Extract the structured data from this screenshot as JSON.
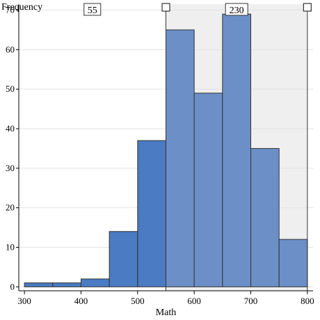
{
  "chart_data": {
    "type": "bar",
    "subtype": "histogram",
    "xlabel": "Math",
    "ylabel": "Frequency",
    "bin_width": 50,
    "bins": [
      {
        "start": 300,
        "end": 350,
        "count": 1
      },
      {
        "start": 350,
        "end": 400,
        "count": 1
      },
      {
        "start": 400,
        "end": 450,
        "count": 2
      },
      {
        "start": 450,
        "end": 500,
        "count": 14
      },
      {
        "start": 500,
        "end": 550,
        "count": 37
      },
      {
        "start": 550,
        "end": 600,
        "count": 65
      },
      {
        "start": 600,
        "end": 650,
        "count": 49
      },
      {
        "start": 650,
        "end": 700,
        "count": 69
      },
      {
        "start": 700,
        "end": 750,
        "count": 35
      },
      {
        "start": 750,
        "end": 800,
        "count": 12
      }
    ],
    "xlim": [
      290,
      810
    ],
    "ylim": [
      -1,
      71.5
    ],
    "x_ticks": [
      300,
      400,
      500,
      600,
      700,
      800
    ],
    "y_ticks": [
      0,
      10,
      20,
      30,
      40,
      50,
      60,
      70
    ],
    "grid": "horizontal",
    "selection": {
      "start": 550,
      "end": 800,
      "count_inside": 230,
      "count_outside": 55
    },
    "colors": {
      "bar_unselected": "#4a7bc3",
      "bar_selected": "#6b8fc6",
      "selection_background": "#efefef",
      "bar_stroke": "#333333"
    }
  }
}
